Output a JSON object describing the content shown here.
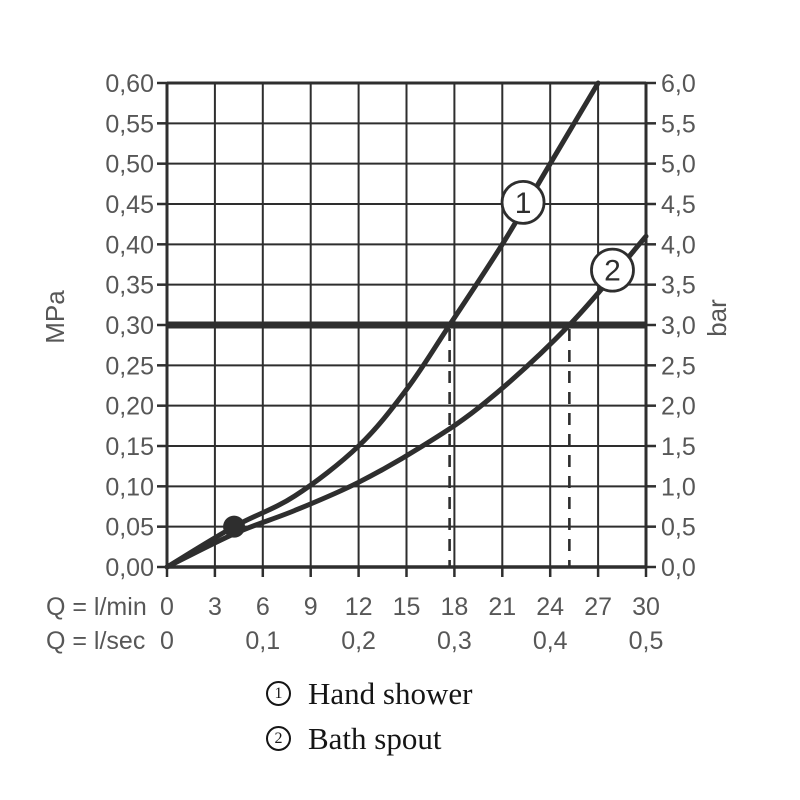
{
  "chart_data": {
    "type": "line",
    "x_axis": {
      "label_primary": "Q = l/min",
      "label_secondary": "Q = l/sec",
      "ticks_primary": [
        "0",
        "3",
        "6",
        "9",
        "12",
        "15",
        "18",
        "21",
        "24",
        "27",
        "30"
      ],
      "ticks_secondary": [
        {
          "label": "0",
          "lmin": 0
        },
        {
          "label": "0,1",
          "lmin": 6
        },
        {
          "label": "0,2",
          "lmin": 12
        },
        {
          "label": "0,3",
          "lmin": 18
        },
        {
          "label": "0,4",
          "lmin": 24
        },
        {
          "label": "0,5",
          "lmin": 30
        }
      ],
      "range_lmin": [
        0,
        30
      ],
      "gridline_step_lmin": 3
    },
    "y_axis_left": {
      "label": "MPa",
      "ticks": [
        "0,00",
        "0,05",
        "0,10",
        "0,15",
        "0,20",
        "0,25",
        "0,30",
        "0,35",
        "0,40",
        "0,45",
        "0,50",
        "0,55",
        "0,60"
      ],
      "range_mpa": [
        0,
        0.6
      ],
      "gridline_step_mpa": 0.05
    },
    "y_axis_right": {
      "label": "bar",
      "ticks": [
        "0,0",
        "0,5",
        "1,0",
        "1,5",
        "2,0",
        "2,5",
        "3,0",
        "3,5",
        "4,0",
        "4,5",
        "5,0",
        "5,5",
        "6,0"
      ],
      "range_bar": [
        0,
        6
      ]
    },
    "series": [
      {
        "marker": "1",
        "name": "Hand shower",
        "points_lmin_mpa": [
          [
            0,
            0
          ],
          [
            4.2,
            0.05
          ],
          [
            8,
            0.088
          ],
          [
            12,
            0.15
          ],
          [
            15,
            0.22
          ],
          [
            17.7,
            0.3
          ],
          [
            21,
            0.4
          ],
          [
            24,
            0.5
          ],
          [
            27,
            0.6
          ]
        ],
        "marker_center_lmin_mpa": [
          22.3,
          0.452
        ]
      },
      {
        "marker": "2",
        "name": "Bath spout",
        "points_lmin_mpa": [
          [
            0,
            0
          ],
          [
            4.3,
            0.042
          ],
          [
            8,
            0.07
          ],
          [
            12,
            0.105
          ],
          [
            16,
            0.15
          ],
          [
            20,
            0.205
          ],
          [
            25.2,
            0.3
          ],
          [
            30,
            0.41
          ]
        ],
        "marker_center_lmin_mpa": [
          27.9,
          0.368
        ]
      }
    ],
    "reference_line_mpa": 0.3,
    "dashed_guides_lmin": [
      17.7,
      25.2
    ],
    "dot_marker_lmin_mpa": [
      4.2,
      0.05
    ],
    "legend": [
      {
        "symbol": "1",
        "label": "Hand shower"
      },
      {
        "symbol": "2",
        "label": "Bath spout"
      }
    ],
    "grid": "on",
    "legend_position": "bottom"
  },
  "colors": {
    "ink": "#2e2e2e",
    "tick_text": "#575757",
    "legend_text": "#151515",
    "background": "#ffffff"
  }
}
